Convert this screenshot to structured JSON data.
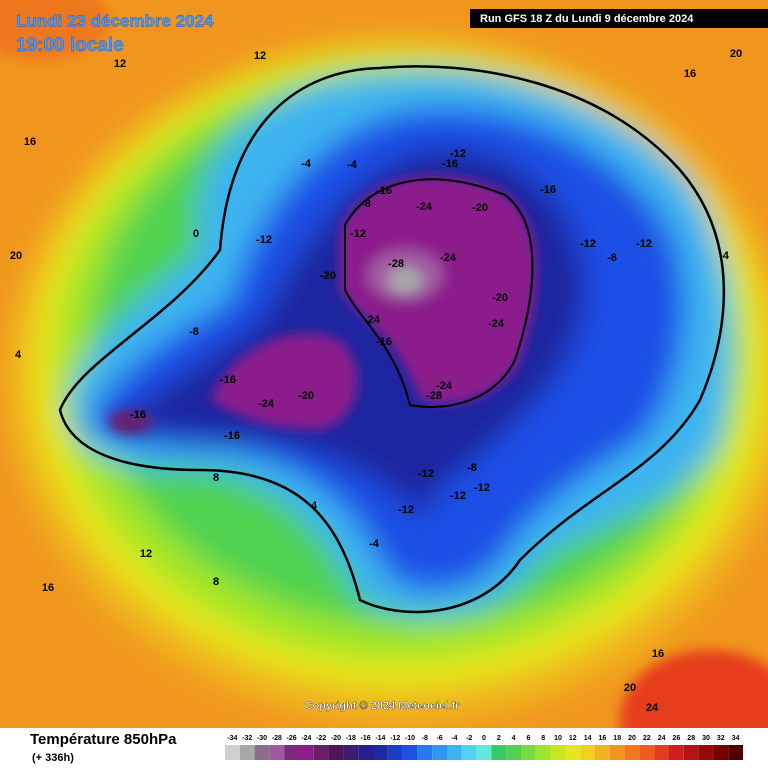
{
  "header": {
    "date": "Lundi 23 décembre 2024",
    "time": "19:00 locale",
    "run": "Run GFS 18 Z du Lundi 9 décembre 2024"
  },
  "footer": {
    "copyright": "Copyright © 2024 Meteociel.fr",
    "title": "Température 850hPa",
    "lead": "(+ 336h)"
  },
  "scale": {
    "values": [
      -34,
      -32,
      -30,
      -28,
      -26,
      -24,
      -22,
      -20,
      -18,
      -16,
      -14,
      -12,
      -10,
      -8,
      -6,
      -4,
      -2,
      0,
      2,
      4,
      6,
      8,
      10,
      12,
      14,
      16,
      18,
      20,
      22,
      24,
      26,
      28,
      30,
      32,
      34
    ],
    "colors": [
      "#d0d0d0",
      "#a8a8a8",
      "#8c6e8c",
      "#a05aa0",
      "#7d2a7d",
      "#8c1e8c",
      "#691e69",
      "#50145a",
      "#3c1e6e",
      "#281e8c",
      "#1e28a0",
      "#1e3cc8",
      "#1e50e6",
      "#2878f0",
      "#3296f0",
      "#3cb4f0",
      "#50d2f0",
      "#64e6dc",
      "#3cc864",
      "#50d250",
      "#78dc3c",
      "#a0e628",
      "#c8e61e",
      "#e6e61e",
      "#f0d21e",
      "#f0b41e",
      "#f0961e",
      "#f0781e",
      "#f05a1e",
      "#e63c1e",
      "#d21e1e",
      "#b41414",
      "#960a0a",
      "#780000",
      "#500000"
    ]
  },
  "map": {
    "labels": [
      -28,
      -24,
      -24,
      -24,
      -24,
      -24,
      -28,
      -20,
      -20,
      -20,
      -16,
      -16,
      -16,
      -16,
      -16,
      -16,
      -16,
      -12,
      -12,
      -12,
      -12,
      -12,
      -12,
      -12,
      -8,
      -8,
      -8,
      -4,
      -4,
      -4,
      0,
      4,
      8,
      12,
      12,
      16,
      16,
      16,
      20,
      20,
      24,
      -24,
      -20,
      -12,
      -12,
      -8,
      -4,
      4,
      8,
      12,
      16,
      20
    ]
  }
}
